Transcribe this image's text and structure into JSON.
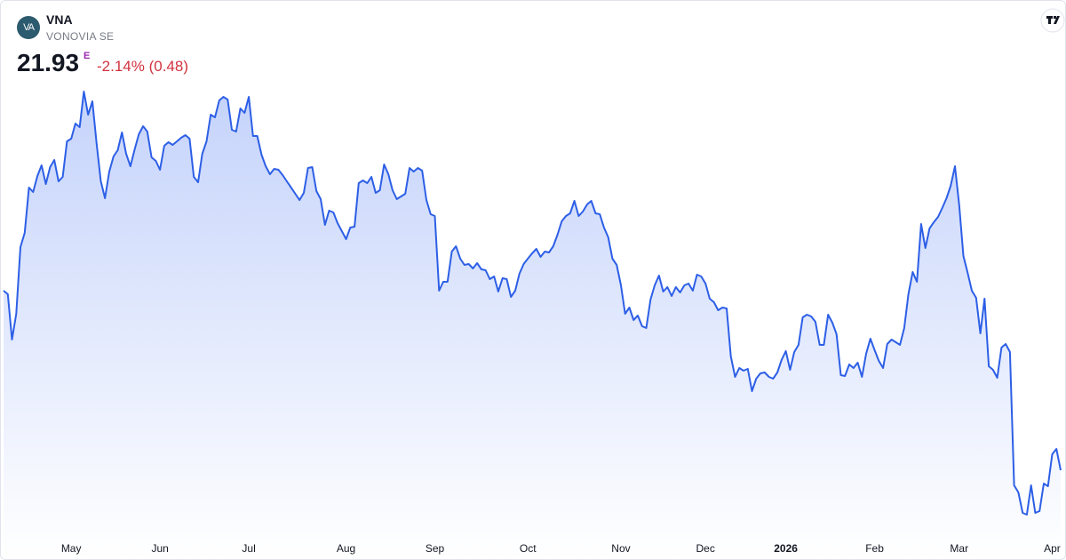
{
  "header": {
    "logo": "VA",
    "symbol": "VNA",
    "name": "VONOVIA SE",
    "price": "21.93",
    "price_flag": "E",
    "change": "-2.14% (0.48)"
  },
  "chart_data": {
    "type": "area",
    "color": "#2d5fe6",
    "values": [
      25.97,
      25.89,
      24.87,
      25.45,
      26.95,
      27.27,
      28.29,
      28.19,
      28.55,
      28.79,
      28.37,
      28.75,
      28.91,
      28.43,
      28.53,
      29.33,
      29.39,
      29.73,
      29.65,
      30.45,
      29.93,
      30.23,
      29.29,
      28.43,
      28.05,
      28.65,
      28.99,
      29.13,
      29.53,
      29.05,
      28.77,
      29.15,
      29.49,
      29.67,
      29.55,
      28.97,
      28.89,
      28.69,
      29.23,
      29.31,
      29.25,
      29.33,
      29.41,
      29.47,
      29.39,
      28.53,
      28.41,
      29.05,
      29.33,
      29.93,
      29.87,
      30.25,
      30.33,
      30.27,
      29.59,
      29.55,
      30.07,
      29.97,
      30.33,
      29.45,
      29.45,
      29.03,
      28.77,
      28.59,
      28.71,
      28.69,
      28.57,
      28.43,
      28.29,
      28.15,
      28.01,
      28.17,
      28.73,
      28.75,
      28.21,
      28.03,
      27.45,
      27.77,
      27.73,
      27.49,
      27.31,
      27.13,
      27.39,
      27.41,
      28.39,
      28.45,
      28.39,
      28.53,
      28.17,
      28.23,
      28.81,
      28.59,
      28.23,
      28.03,
      28.09,
      28.15,
      28.73,
      28.65,
      28.73,
      28.67,
      28.01,
      27.69,
      27.65,
      25.97,
      26.17,
      26.17,
      26.85,
      26.97,
      26.69,
      26.55,
      26.57,
      26.47,
      26.59,
      26.45,
      26.43,
      26.23,
      26.29,
      25.95,
      26.25,
      26.23,
      25.83,
      25.97,
      26.35,
      26.57,
      26.69,
      26.81,
      26.91,
      26.73,
      26.85,
      26.83,
      26.97,
      27.23,
      27.53,
      27.65,
      27.71,
      27.99,
      27.65,
      27.75,
      27.91,
      27.99,
      27.71,
      27.69,
      27.39,
      27.17,
      26.69,
      26.55,
      26.09,
      25.45,
      25.59,
      25.31,
      25.41,
      25.17,
      25.13,
      25.77,
      26.09,
      26.31,
      25.95,
      26.05,
      25.85,
      26.05,
      25.93,
      26.09,
      26.13,
      25.97,
      26.33,
      26.29,
      26.13,
      25.79,
      25.71,
      25.53,
      25.59,
      25.57,
      24.49,
      24.03,
      24.23,
      24.17,
      24.21,
      23.71,
      23.99,
      24.11,
      24.13,
      24.03,
      23.99,
      24.13,
      24.41,
      24.61,
      24.19,
      24.59,
      24.75,
      25.37,
      25.43,
      25.39,
      25.27,
      24.75,
      24.75,
      25.43,
      25.25,
      24.99,
      24.07,
      24.05,
      24.31,
      24.23,
      24.35,
      24.03,
      24.55,
      24.89,
      24.63,
      24.39,
      24.23,
      24.77,
      24.87,
      24.81,
      24.75,
      25.13,
      25.89,
      26.39,
      26.17,
      27.47,
      26.93,
      27.37,
      27.51,
      27.63,
      27.83,
      28.05,
      28.33,
      28.77,
      27.89,
      26.75,
      26.37,
      25.97,
      25.81,
      25.01,
      25.79,
      24.27,
      24.19,
      24.01,
      24.69,
      24.77,
      24.59,
      21.59,
      21.43,
      20.97,
      20.93,
      21.59,
      20.97,
      21.01,
      21.63,
      21.57,
      22.29,
      22.41,
      21.93
    ],
    "xlim": [
      0,
      250
    ],
    "ylim": [
      20.49,
      32.49
    ],
    "xticks": [
      {
        "value": 16,
        "label": "May"
      },
      {
        "value": 37,
        "label": "Jun"
      },
      {
        "value": 58,
        "label": "Jul"
      },
      {
        "value": 81,
        "label": "Aug"
      },
      {
        "value": 102,
        "label": "Sep"
      },
      {
        "value": 124,
        "label": "Oct"
      },
      {
        "value": 146,
        "label": "Nov"
      },
      {
        "value": 166,
        "label": "Dec"
      },
      {
        "value": 185,
        "label": "2026"
      },
      {
        "value": 206,
        "label": "Feb"
      },
      {
        "value": 226,
        "label": "Mar"
      },
      {
        "value": 248,
        "label": "Apr"
      }
    ]
  }
}
